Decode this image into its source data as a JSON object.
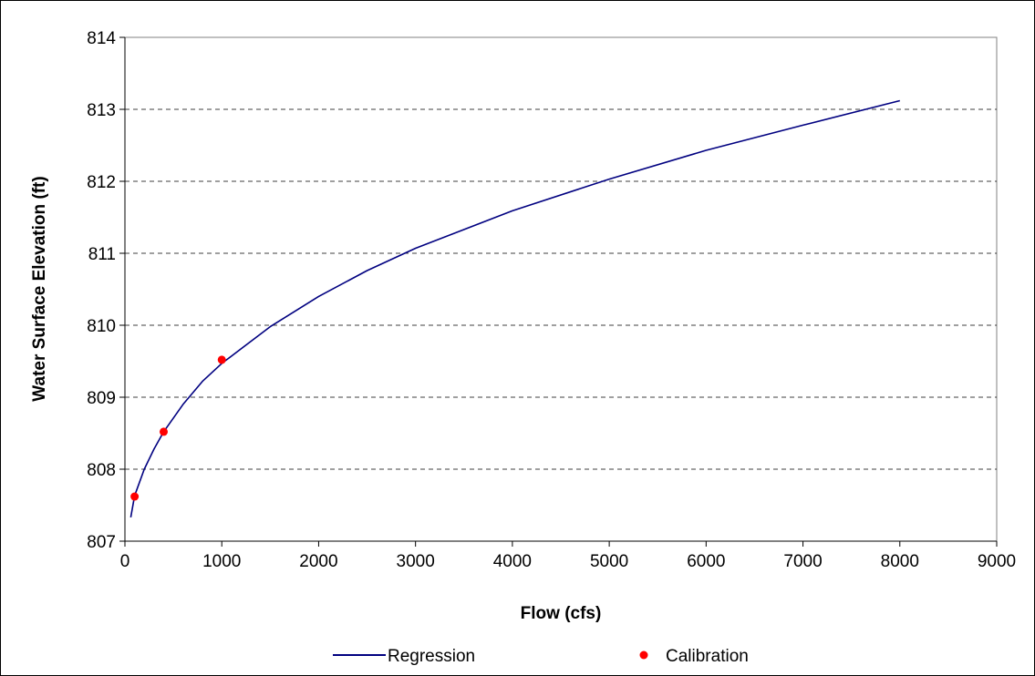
{
  "chart_data": {
    "type": "line",
    "title": "",
    "xlabel": "Flow (cfs)",
    "ylabel": "Water Surface Elevation (ft)",
    "xlim": [
      0,
      9000
    ],
    "ylim": [
      807,
      814
    ],
    "x_ticks": [
      0,
      1000,
      2000,
      3000,
      4000,
      5000,
      6000,
      7000,
      8000,
      9000
    ],
    "y_ticks": [
      807,
      808,
      809,
      810,
      811,
      812,
      813,
      814
    ],
    "x_tick_labels": [
      "0",
      "1000",
      "2000",
      "3000",
      "4000",
      "5000",
      "6000",
      "7000",
      "8000",
      "9000"
    ],
    "y_tick_labels": [
      "807",
      "808",
      "809",
      "810",
      "811",
      "812",
      "813",
      "814"
    ],
    "grid": "horizontal dashed",
    "legend_position": "bottom",
    "series": [
      {
        "name": "Regression",
        "kind": "line",
        "color": "#000080",
        "x": [
          60,
          100,
          200,
          300,
          400,
          600,
          800,
          1000,
          1500,
          2000,
          2500,
          3000,
          4000,
          5000,
          6000,
          7000,
          8000
        ],
        "y": [
          807.33,
          807.63,
          808.0,
          808.28,
          808.52,
          808.9,
          809.22,
          809.47,
          809.98,
          810.4,
          810.76,
          811.07,
          811.59,
          812.03,
          812.43,
          812.78,
          813.12
        ]
      },
      {
        "name": "Calibration",
        "kind": "scatter",
        "color": "#ff0000",
        "x": [
          100,
          400,
          1000
        ],
        "y": [
          807.62,
          808.52,
          809.52
        ]
      }
    ]
  }
}
